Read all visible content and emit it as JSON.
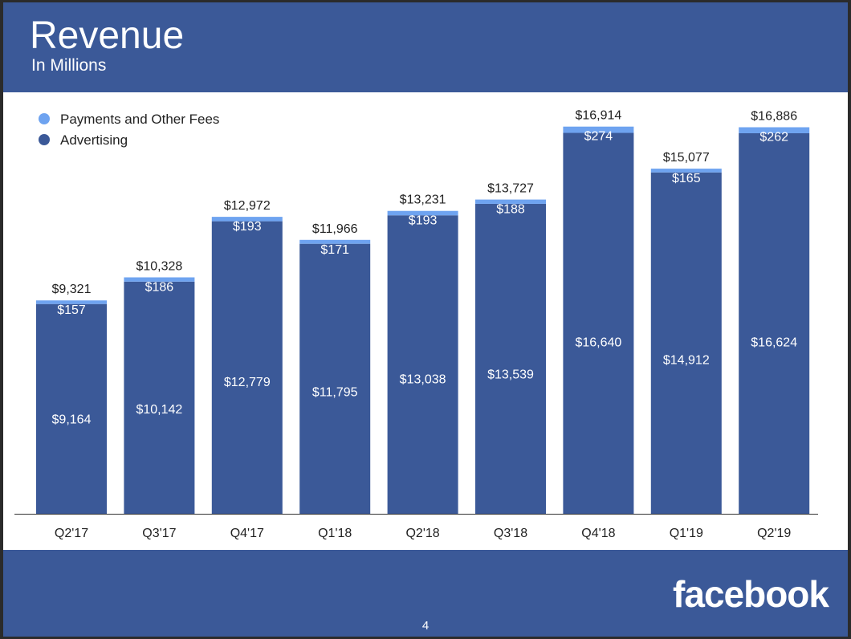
{
  "header": {
    "title": "Revenue",
    "subtitle": "In Millions"
  },
  "footer": {
    "logo_text": "facebook",
    "page_number": "4"
  },
  "colors": {
    "advertising": "#3b5998",
    "payments": "#6ea3f0",
    "background": "#3b5998",
    "axis": "#333333"
  },
  "chart_data": {
    "type": "bar",
    "stacked": true,
    "categories": [
      "Q2'17",
      "Q3'17",
      "Q4'17",
      "Q1'18",
      "Q2'18",
      "Q3'18",
      "Q4'18",
      "Q1'19",
      "Q2'19"
    ],
    "series": [
      {
        "name": "Advertising",
        "values": [
          9164,
          10142,
          12779,
          11795,
          13038,
          13539,
          16640,
          14912,
          16624
        ],
        "labels": [
          "$9,164",
          "$10,142",
          "$12,779",
          "$11,795",
          "$13,038",
          "$13,539",
          "$16,640",
          "$14,912",
          "$16,624"
        ]
      },
      {
        "name": "Payments and Other Fees",
        "values": [
          157,
          186,
          193,
          171,
          193,
          188,
          274,
          165,
          262
        ],
        "labels": [
          "$157",
          "$186",
          "$193",
          "$171",
          "$193",
          "$188",
          "$274",
          "$165",
          "$262"
        ]
      }
    ],
    "totals": [
      9321,
      10328,
      12972,
      11966,
      13231,
      13727,
      16914,
      15077,
      16886
    ],
    "total_labels": [
      "$9,321",
      "$10,328",
      "$12,972",
      "$11,966",
      "$13,231",
      "$13,727",
      "$16,914",
      "$15,077",
      "$16,886"
    ],
    "legend": [
      "Payments and Other Fees",
      "Advertising"
    ],
    "legend_position": "top-left",
    "ylim": [
      0,
      17500
    ],
    "grid": false,
    "xlabel": "",
    "ylabel": ""
  }
}
